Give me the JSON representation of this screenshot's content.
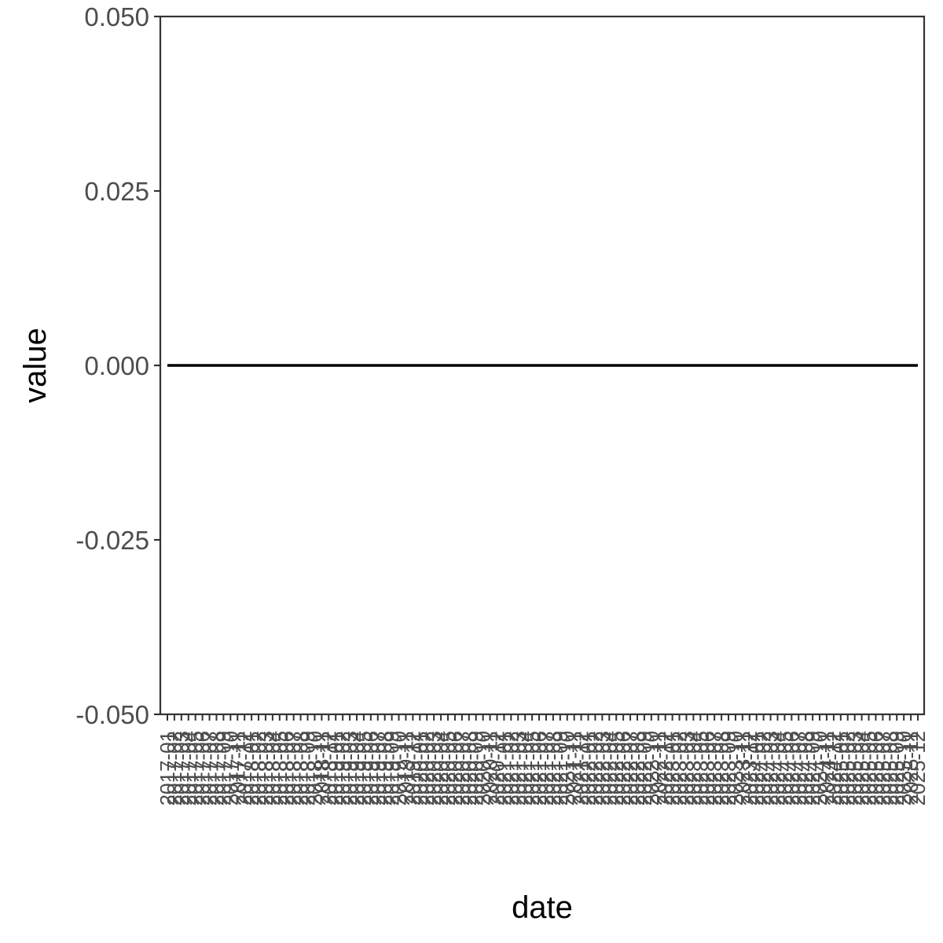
{
  "chart_data": {
    "type": "line",
    "xlabel": "date",
    "ylabel": "value",
    "ylim": [
      -0.05,
      0.05
    ],
    "y_ticks": [
      "-0.050",
      "-0.025",
      "0.000",
      "0.025",
      "0.050"
    ],
    "x": [
      "2017-01",
      "2017-02",
      "2017-03",
      "2017-04",
      "2017-05",
      "2017-06",
      "2017-07",
      "2017-08",
      "2017-09",
      "2017-10",
      "2017-11",
      "2017-12",
      "2018-01",
      "2018-02",
      "2018-03",
      "2018-04",
      "2018-05",
      "2018-06",
      "2018-07",
      "2018-08",
      "2018-09",
      "2018-10",
      "2018-11",
      "2018-12",
      "2019-01",
      "2019-02",
      "2019-03",
      "2019-04",
      "2019-05",
      "2019-06",
      "2019-07",
      "2019-08",
      "2019-09",
      "2019-10",
      "2019-11",
      "2019-12",
      "2020-01",
      "2020-02",
      "2020-03",
      "2020-04",
      "2020-05",
      "2020-06",
      "2020-07",
      "2020-08",
      "2020-09",
      "2020-10",
      "2020-11",
      "2020-12",
      "2021-01",
      "2021-02",
      "2021-03",
      "2021-04",
      "2021-05",
      "2021-06",
      "2021-07",
      "2021-08",
      "2021-09",
      "2021-10",
      "2021-11",
      "2021-12",
      "2022-01",
      "2022-02",
      "2022-03",
      "2022-04",
      "2022-05",
      "2022-06",
      "2022-07",
      "2022-08",
      "2022-09",
      "2022-10",
      "2022-11",
      "2022-12",
      "2023-01",
      "2023-02",
      "2023-03",
      "2023-04",
      "2023-05",
      "2023-06",
      "2023-07",
      "2023-08",
      "2023-09",
      "2023-10",
      "2023-11",
      "2023-12",
      "2024-01",
      "2024-02",
      "2024-03",
      "2024-04",
      "2024-05",
      "2024-06",
      "2024-07",
      "2024-08",
      "2024-09",
      "2024-10",
      "2024-11",
      "2024-12",
      "2025-01",
      "2025-02",
      "2025-03",
      "2025-04",
      "2025-05",
      "2025-06",
      "2025-07",
      "2025-08",
      "2025-09",
      "2025-10",
      "2025-11",
      "2025-12"
    ],
    "series": [
      {
        "color": "#000000",
        "values": [
          0,
          0,
          0,
          0,
          0,
          0,
          0,
          0,
          0,
          0,
          0,
          0,
          0,
          0,
          0,
          0,
          0,
          0,
          0,
          0,
          0,
          0,
          0,
          0,
          0,
          0,
          0,
          0,
          0,
          0,
          0,
          0,
          0,
          0,
          0,
          0,
          0,
          0,
          0,
          0,
          0,
          0,
          0,
          0,
          0,
          0,
          0,
          0,
          0,
          0,
          0,
          0,
          0,
          0,
          0,
          0,
          0,
          0,
          0,
          0,
          0,
          0,
          0,
          0,
          0,
          0,
          0,
          0,
          0,
          0,
          0,
          0,
          0,
          0,
          0,
          0,
          0,
          0,
          0,
          0,
          0,
          0,
          0,
          0,
          0,
          0,
          0,
          0,
          0,
          0,
          0,
          0,
          0,
          0,
          0,
          0,
          0,
          0,
          0,
          0,
          0,
          0,
          0,
          0,
          0,
          0,
          0,
          0
        ]
      }
    ],
    "grid": false,
    "legend": "none"
  }
}
